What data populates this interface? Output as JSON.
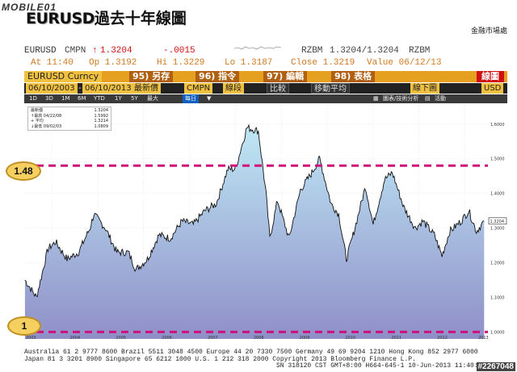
{
  "header": {
    "site_logo": "MOBILE01",
    "title_en": "EURUSD",
    "title_zh": "過去十年線圖",
    "source": "金融市場處"
  },
  "quote_line1": {
    "ticker": "EURUSD",
    "cmpn": "CMPN",
    "arrow": "↑",
    "last": "1.3204",
    "change": "-.0015",
    "rzbm_label": "RZBM",
    "bid_ask": "1.3204/1.3204",
    "rzbm_label2": "RZBM"
  },
  "quote_line2": {
    "at": "At 11:40",
    "op": "Op 1.3192",
    "hi": "Hi 1.3229",
    "lo": "Lo 1.3187",
    "close": "Close 1.3219",
    "value": "Value 06/12/13"
  },
  "command_bar": {
    "ticker": "EURUSD Curncy",
    "menus": [
      "95) 另存",
      "96) 指令",
      "97) 編輯",
      "98) 表格"
    ],
    "chart_label": "線圖"
  },
  "date_bar": {
    "start": "06/10/2003",
    "end": "06/10/2013",
    "mode": "最新價",
    "source": "CMPN",
    "dropdown_a": "線段",
    "compare": "比較",
    "moving_avg": "移動平均",
    "chart_type": "線下圖",
    "currency": "USD"
  },
  "tools_bar": {
    "periods": [
      "1D",
      "3D",
      "1M",
      "6M",
      "YTD",
      "1Y",
      "5Y",
      "最大"
    ],
    "frequency": "每日",
    "analysis": "圖表/技術分析",
    "events": "活動"
  },
  "legend": {
    "rows": [
      {
        "label": "最新價",
        "value": "1.3204"
      },
      {
        "label": "↑最高 04/22/08",
        "value": "1.5992"
      },
      {
        "label": "+ 平均",
        "value": "1.3214"
      },
      {
        "label": "↓最低 09/02/03",
        "value": "1.0809"
      }
    ]
  },
  "annotations": {
    "upper": "1.48",
    "lower": "1"
  },
  "current_price_label": "1.3204",
  "chart_data": {
    "type": "area",
    "x": [
      "2003-06",
      "2003-09",
      "2003-12",
      "2004-02",
      "2004-05",
      "2004-08",
      "2004-11",
      "2004-12",
      "2005-03",
      "2005-06",
      "2005-09",
      "2005-11",
      "2006-02",
      "2006-05",
      "2006-08",
      "2006-11",
      "2007-02",
      "2007-05",
      "2007-08",
      "2007-11",
      "2008-01",
      "2008-04",
      "2008-07",
      "2008-09",
      "2008-10",
      "2008-12",
      "2009-03",
      "2009-06",
      "2009-09",
      "2009-11",
      "2010-02",
      "2010-04",
      "2010-06",
      "2010-08",
      "2010-11",
      "2011-01",
      "2011-04",
      "2011-06",
      "2011-09",
      "2011-12",
      "2012-02",
      "2012-05",
      "2012-07",
      "2012-09",
      "2012-12",
      "2013-02",
      "2013-04",
      "2013-06"
    ],
    "y": [
      1.15,
      1.1,
      1.24,
      1.26,
      1.21,
      1.23,
      1.3,
      1.34,
      1.3,
      1.23,
      1.23,
      1.18,
      1.21,
      1.28,
      1.27,
      1.32,
      1.31,
      1.35,
      1.37,
      1.47,
      1.47,
      1.59,
      1.58,
      1.4,
      1.27,
      1.38,
      1.27,
      1.41,
      1.46,
      1.5,
      1.37,
      1.34,
      1.21,
      1.29,
      1.42,
      1.31,
      1.44,
      1.46,
      1.36,
      1.3,
      1.32,
      1.28,
      1.22,
      1.29,
      1.32,
      1.35,
      1.29,
      1.32
    ],
    "x_ticks": [
      "2003",
      "2004",
      "2005",
      "2006",
      "2007",
      "2008",
      "2009",
      "2010",
      "2011",
      "2012",
      "2013"
    ],
    "y_ticks": [
      "1.0000",
      "1.1000",
      "1.2000",
      "1.3000",
      "1.4000",
      "1.5000",
      "1.6000"
    ],
    "ylim": [
      0.98,
      1.66
    ],
    "reference_lines": [
      1.48,
      1.0
    ],
    "grid": true
  },
  "footer": {
    "line1": "Australia 61 2 9777 8600 Brazil 5511 3048 4500 Europe 44 20 7330 7500 Germany 49 69 9204 1210 Hong Kong 852 2977 6000",
    "line2": "Japan 81 3 3201 8900      Singapore 65 6212 1000     U.S. 1 212 318 2000      Copyright 2013 Bloomberg Finance L.P.",
    "line3": "SN 318120 CST  GMT+8:00 H664-645-1 10-Jun-2013 11:40:22",
    "watermark": "#2267048"
  }
}
